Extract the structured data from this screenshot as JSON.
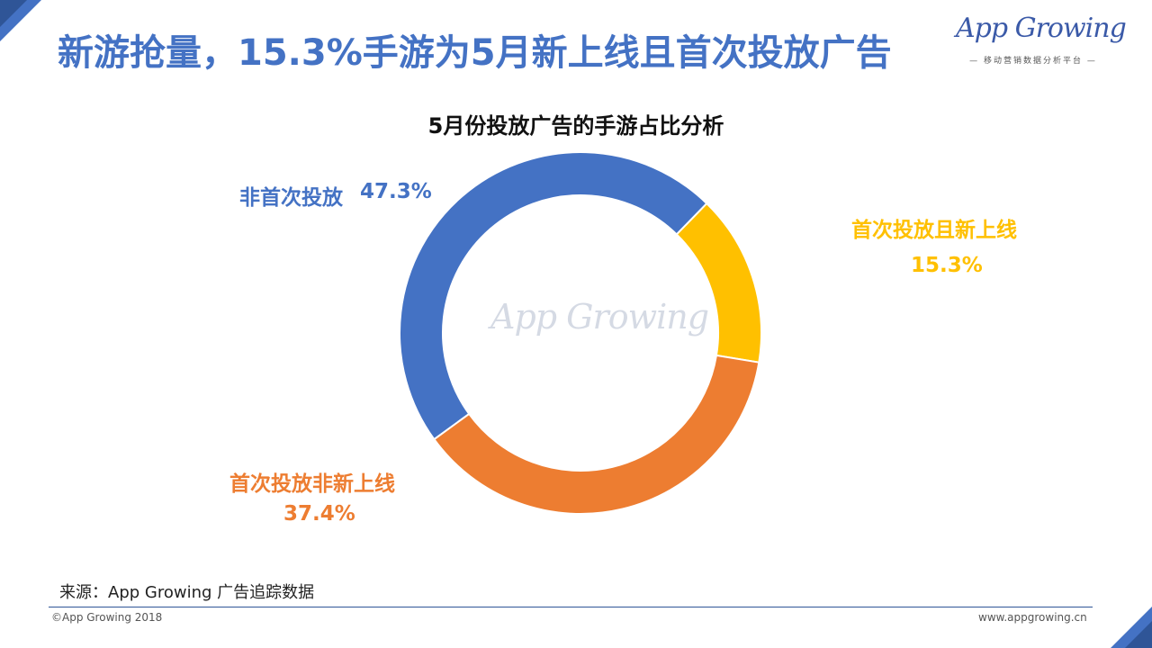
{
  "header": {
    "title": "新游抢量，15.3%手游为5月新上线且首次投放广告"
  },
  "logo": {
    "name": "App Growing",
    "tagline": "— 移动营销数据分析平台 —"
  },
  "watermark": "App Growing",
  "chart_data": {
    "type": "pie",
    "title": "5月份投放广告的手游占比分析",
    "style": "donut",
    "slices": [
      {
        "label": "非首次投放",
        "value": 47.3,
        "value_label": "47.3%",
        "color": "#4472c4"
      },
      {
        "label": "首次投放且新上线",
        "value": 15.3,
        "value_label": "15.3%",
        "color": "#ffc000"
      },
      {
        "label": "首次投放非新上线",
        "value": 37.4,
        "value_label": "37.4%",
        "color": "#ed7d31"
      }
    ]
  },
  "footer": {
    "source": "来源：App Growing 广告追踪数据",
    "copyright": "©App Growing 2018",
    "url": "www.appgrowing.cn"
  },
  "colors": {
    "accent": "#4472c4",
    "accent_dark": "#2f5597"
  }
}
